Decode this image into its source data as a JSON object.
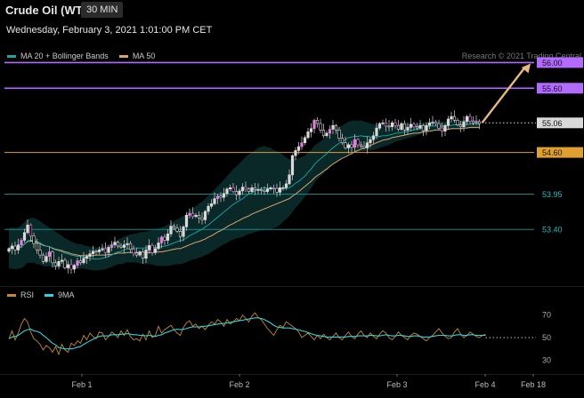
{
  "header": {
    "title": "Crude Oil (WTI)",
    "timeframe": "30 MIN",
    "timestamp": "Wednesday, February 3, 2021 1:01:00 PM CET",
    "credit": "Research © 2021 Trading Central"
  },
  "colors": {
    "resistance": "#b36bff",
    "current": "#d9d9d9",
    "support_main": "#e0a030",
    "support_other": "#0d8a8a",
    "ma20": "#1aa6a6",
    "ma50": "#d9a470",
    "rsi": "#c58a2a",
    "rsi_ma": "#2fd3e0",
    "arrow": "#e8b882",
    "candle": "#d9d9d9",
    "candle_accent": "#e57bdc"
  },
  "chart_data": [
    {
      "type": "candlestick",
      "title": "Crude Oil (WTI)",
      "timeframe": "30 MIN",
      "legend": [
        {
          "name": "MA 20 + Bollinger Bands",
          "color": "#1aa6a6"
        },
        {
          "name": "MA 50",
          "color": "#d9a470"
        }
      ],
      "legend_position": "top-left",
      "grid": false,
      "ylim": [
        52.6,
        56.2
      ],
      "x_ticks": [
        "Feb 1",
        "Feb 2",
        "Feb 3",
        "Feb 4",
        "Feb 18"
      ],
      "levels": [
        {
          "value": 56.0,
          "label": "56.00",
          "kind": "resistance"
        },
        {
          "value": 55.6,
          "label": "55.60",
          "kind": "resistance"
        },
        {
          "value": 55.06,
          "label": "55.06",
          "kind": "current"
        },
        {
          "value": 54.6,
          "label": "54.60",
          "kind": "support_main"
        },
        {
          "value": 53.95,
          "label": "53.95",
          "kind": "support"
        },
        {
          "value": 53.4,
          "label": "53.40",
          "kind": "support"
        }
      ],
      "closes": [
        53.1,
        53.14,
        53.08,
        53.16,
        53.23,
        53.35,
        53.47,
        53.3,
        53.18,
        53.08,
        53.0,
        52.9,
        52.98,
        53.05,
        52.88,
        52.83,
        52.9,
        52.92,
        52.8,
        52.85,
        52.78,
        52.84,
        52.91,
        52.88,
        52.95,
        52.98,
        53.02,
        53.06,
        53.05,
        53.08,
        53.1,
        53.04,
        53.12,
        53.16,
        53.2,
        53.14,
        53.12,
        53.16,
        53.18,
        53.09,
        53.03,
        53.0,
        53.05,
        52.95,
        53.08,
        53.15,
        53.04,
        53.1,
        53.19,
        53.28,
        53.23,
        53.33,
        53.45,
        53.42,
        53.37,
        53.29,
        53.44,
        53.62,
        53.65,
        53.6,
        53.62,
        53.58,
        53.55,
        53.68,
        53.76,
        53.8,
        53.88,
        53.92,
        53.9,
        53.96,
        54.03,
        54.05,
        53.99,
        53.94,
        54.0,
        54.06,
        54.03,
        53.99,
        54.05,
        54.02,
        54.02,
        54.01,
        53.99,
        54.03,
        54.05,
        54.04,
        53.98,
        54.05,
        54.05,
        54.11,
        54.25,
        54.55,
        54.63,
        54.69,
        54.75,
        54.83,
        54.92,
        54.97,
        55.1,
        55.05,
        54.95,
        54.86,
        54.9,
        54.96,
        55.02,
        54.95,
        54.82,
        54.75,
        54.67,
        54.72,
        54.68,
        54.8,
        54.72,
        54.7,
        54.67,
        54.75,
        54.8,
        54.86,
        54.98,
        55.05,
        55.06,
        55.01,
        55.0,
        55.06,
        55.02,
        54.96,
        55.05,
        54.95,
        54.99,
        55.04,
        55.0,
        54.98,
        55.02,
        54.94,
        55.02,
        55.06,
        55.07,
        55.05,
        54.98,
        54.93,
        55.02,
        55.12,
        55.16,
        55.1,
        55.03,
        55.0,
        55.08,
        55.16,
        55.09,
        55.06,
        55.08,
        55.05
      ],
      "ma50": [
        53.1,
        53.11,
        53.1,
        53.11,
        53.13,
        53.17,
        53.21,
        53.22,
        53.21,
        53.2,
        53.18,
        53.15,
        53.14,
        53.13,
        53.11,
        53.09,
        53.08,
        53.07,
        53.05,
        53.04,
        53.02,
        53.01,
        53.0,
        52.99,
        52.99,
        52.99,
        52.99,
        52.99,
        53.0,
        53.0,
        53.0,
        53.0,
        53.01,
        53.01,
        53.02,
        53.03,
        53.03,
        53.03,
        53.04,
        53.04,
        53.04,
        53.04,
        53.04,
        53.03,
        53.04,
        53.04,
        53.04,
        53.04,
        53.05,
        53.05,
        53.06,
        53.07,
        53.08,
        53.09,
        53.1,
        53.1,
        53.12,
        53.14,
        53.16,
        53.18,
        53.2,
        53.21,
        53.23,
        53.25,
        53.28,
        53.3,
        53.33,
        53.36,
        53.38,
        53.41,
        53.44,
        53.47,
        53.49,
        53.52,
        53.54,
        53.57,
        53.59,
        53.61,
        53.64,
        53.66,
        53.68,
        53.7,
        53.72,
        53.74,
        53.76,
        53.78,
        53.8,
        53.82,
        53.84,
        53.86,
        53.88,
        53.92,
        53.95,
        53.99,
        54.03,
        54.07,
        54.11,
        54.15,
        54.2,
        54.24,
        54.27,
        54.31,
        54.34,
        54.38,
        54.42,
        54.45,
        54.48,
        54.51,
        54.53,
        54.56,
        54.58,
        54.61,
        54.63,
        54.65,
        54.67,
        54.69,
        54.71,
        54.73,
        54.75,
        54.77,
        54.79,
        54.8,
        54.81,
        54.83,
        54.84,
        54.85,
        54.86,
        54.87,
        54.88,
        54.89,
        54.9,
        54.9,
        54.91,
        54.92,
        54.93,
        54.93,
        54.94,
        54.95,
        54.95,
        54.95,
        54.96,
        54.96,
        54.97,
        54.97,
        54.97,
        54.97,
        54.98,
        54.98,
        54.99,
        54.99,
        54.99,
        54.99
      ],
      "ma20": [
        53.1,
        53.11,
        53.1,
        53.11,
        53.13,
        53.17,
        53.22,
        53.23,
        53.23,
        53.21,
        53.19,
        53.16,
        53.14,
        53.13,
        53.1,
        53.08,
        53.07,
        53.05,
        53.03,
        53.02,
        53.0,
        52.99,
        52.98,
        52.98,
        52.97,
        52.96,
        52.95,
        52.94,
        52.94,
        52.94,
        52.95,
        52.96,
        52.98,
        53.0,
        53.03,
        53.05,
        53.06,
        53.08,
        53.1,
        53.1,
        53.11,
        53.11,
        53.11,
        53.11,
        53.11,
        53.12,
        53.12,
        53.12,
        53.12,
        53.13,
        53.14,
        53.15,
        53.17,
        53.19,
        53.21,
        53.22,
        53.24,
        53.27,
        53.3,
        53.33,
        53.35,
        53.38,
        53.4,
        53.44,
        53.47,
        53.51,
        53.55,
        53.59,
        53.63,
        53.67,
        53.71,
        53.75,
        53.79,
        53.82,
        53.85,
        53.88,
        53.92,
        53.95,
        53.97,
        54.0,
        54.02,
        54.04,
        54.05,
        54.04,
        54.04,
        54.03,
        54.03,
        54.03,
        54.04,
        54.04,
        54.05,
        54.08,
        54.12,
        54.15,
        54.19,
        54.23,
        54.29,
        54.34,
        54.41,
        54.46,
        54.5,
        54.54,
        54.58,
        54.63,
        54.67,
        54.71,
        54.74,
        54.77,
        54.8,
        54.83,
        54.84,
        54.85,
        54.85,
        54.86,
        54.85,
        54.85,
        54.84,
        54.84,
        54.84,
        54.85,
        54.86,
        54.86,
        54.87,
        54.88,
        54.9,
        54.9,
        54.91,
        54.92,
        54.93,
        54.94,
        54.95,
        54.96,
        54.97,
        54.98,
        54.99,
        55.01,
        55.01,
        55.01,
        55.01,
        55.01,
        55.01,
        55.02,
        55.02,
        55.03,
        55.03,
        55.03,
        55.03,
        55.04,
        55.04,
        55.04,
        55.04,
        55.04
      ],
      "bb_width": [
        0.31,
        0.32,
        0.32,
        0.32,
        0.33,
        0.34,
        0.34,
        0.35,
        0.35,
        0.35,
        0.34,
        0.33,
        0.32,
        0.3,
        0.29,
        0.28,
        0.26,
        0.25,
        0.23,
        0.22,
        0.21,
        0.2,
        0.19,
        0.19,
        0.18,
        0.18,
        0.18,
        0.18,
        0.18,
        0.18,
        0.18,
        0.18,
        0.18,
        0.19,
        0.19,
        0.19,
        0.2,
        0.21,
        0.21,
        0.22,
        0.22,
        0.23,
        0.24,
        0.25,
        0.25,
        0.26,
        0.27,
        0.28,
        0.29,
        0.3,
        0.31,
        0.32,
        0.33,
        0.34,
        0.35,
        0.36,
        0.37,
        0.38,
        0.39,
        0.4,
        0.41,
        0.42,
        0.43,
        0.44,
        0.45,
        0.46,
        0.47,
        0.48,
        0.49,
        0.5,
        0.52,
        0.53,
        0.55,
        0.56,
        0.58,
        0.6,
        0.61,
        0.62,
        0.63,
        0.64,
        0.65,
        0.65,
        0.65,
        0.64,
        0.63,
        0.61,
        0.59,
        0.56,
        0.52,
        0.48,
        0.44,
        0.41,
        0.38,
        0.36,
        0.34,
        0.32,
        0.31,
        0.3,
        0.29,
        0.28,
        0.27,
        0.27,
        0.26,
        0.26,
        0.26,
        0.25,
        0.25,
        0.25,
        0.25,
        0.25,
        0.25,
        0.25,
        0.24,
        0.24,
        0.23,
        0.22,
        0.21,
        0.2,
        0.19,
        0.18,
        0.17,
        0.16,
        0.15,
        0.14,
        0.13,
        0.12,
        0.12,
        0.11,
        0.11,
        0.1,
        0.1,
        0.09,
        0.09,
        0.09,
        0.08,
        0.08,
        0.08,
        0.08,
        0.08,
        0.07,
        0.07,
        0.07,
        0.07,
        0.07,
        0.07,
        0.07,
        0.07,
        0.07,
        0.07,
        0.07,
        0.07,
        0.07,
        0.07,
        0.07
      ],
      "projection": {
        "from": 55.06,
        "to": 56.0
      }
    },
    {
      "type": "line",
      "legend": [
        {
          "name": "RSI",
          "color": "#c58a2a"
        },
        {
          "name": "9MA",
          "color": "#2fd3e0"
        }
      ],
      "legend_position": "top-left",
      "grid": false,
      "ylim": [
        20,
        80
      ],
      "y_ticks": [
        70,
        50,
        30
      ],
      "reference_level": 50,
      "rsi": [
        49.0,
        56.0,
        48.0,
        54.0,
        62.0,
        67.0,
        64.0,
        55.0,
        49.0,
        47.0,
        44.0,
        39.0,
        43.0,
        41.0,
        37.0,
        42.0,
        35.0,
        44.0,
        39.0,
        37.0,
        45.0,
        43.0,
        47.0,
        45.0,
        52.0,
        48.0,
        54.0,
        51.0,
        49.0,
        55.0,
        54.0,
        48.0,
        51.0,
        55.0,
        53.0,
        50.0,
        56.0,
        52.0,
        57.0,
        51.0,
        48.0,
        49.0,
        47.0,
        53.0,
        48.0,
        56.0,
        50.0,
        52.0,
        60.0,
        54.0,
        57.0,
        59.0,
        61.0,
        57.0,
        54.0,
        52.0,
        59.0,
        63.0,
        65.0,
        60.0,
        62.0,
        58.0,
        60.0,
        57.0,
        61.0,
        64.0,
        62.0,
        66.0,
        64.0,
        60.0,
        66.0,
        62.0,
        64.0,
        67.0,
        65.0,
        70.0,
        67.0,
        64.0,
        69.0,
        72.0,
        68.0,
        66.0,
        62.0,
        58.0,
        55.0,
        52.0,
        57.0,
        61.0,
        59.0,
        64.0,
        62.0,
        60.0,
        58.0,
        55.0,
        50.0,
        52.0,
        54.0,
        51.0,
        48.0,
        52.0,
        49.0,
        53.0,
        50.0,
        48.0,
        51.0,
        54.0,
        50.0,
        48.0,
        52.0,
        55.0,
        51.0,
        49.0,
        53.0,
        56.0,
        52.0,
        50.0,
        54.0,
        51.0,
        49.0,
        53.0,
        56.0,
        54.0,
        50.0,
        48.0,
        51.0,
        55.0,
        52.0,
        50.0,
        48.0,
        52.0,
        54.0,
        53.0,
        51.0,
        49.0,
        47.0,
        50.0,
        52.0,
        55.0,
        58.0,
        54.0,
        51.0,
        49.0,
        50.0,
        55.0,
        58.0,
        53.0,
        50.0,
        52.0,
        55.0,
        53.0,
        51.0,
        50.0,
        52.0,
        53.0
      ],
      "ma9": [
        49.0,
        50.5,
        51.0,
        52.0,
        54.0,
        56.0,
        57.0,
        57.5,
        56.0,
        55.5,
        54.5,
        52.0,
        50.0,
        47.5,
        45.0,
        43.5,
        41.0,
        40.5,
        40.0,
        40.0,
        40.0,
        40.5,
        41.5,
        42.0,
        44.0,
        45.5,
        47.0,
        48.5,
        50.0,
        51.0,
        51.5,
        51.5,
        51.5,
        52.5,
        52.5,
        52.5,
        53.0,
        53.0,
        53.5,
        53.0,
        52.5,
        52.5,
        52.0,
        52.0,
        51.5,
        52.0,
        51.5,
        51.0,
        52.0,
        52.5,
        54.0,
        55.0,
        56.0,
        57.0,
        57.5,
        57.0,
        57.5,
        58.0,
        59.0,
        59.5,
        59.5,
        59.5,
        60.0,
        60.0,
        60.5,
        61.0,
        61.5,
        62.0,
        62.5,
        62.5,
        63.0,
        63.5,
        64.0,
        64.5,
        65.0,
        65.5,
        66.0,
        66.5,
        67.0,
        67.5,
        67.5,
        67.0,
        66.0,
        64.5,
        63.0,
        61.0,
        59.5,
        59.0,
        58.5,
        58.5,
        58.5,
        58.0,
        57.5,
        57.0,
        56.0,
        55.5,
        54.5,
        53.5,
        52.5,
        52.0,
        51.5,
        51.0,
        50.5,
        50.5,
        50.5,
        50.5,
        50.5,
        50.5,
        50.5,
        51.0,
        51.0,
        51.0,
        51.5,
        51.5,
        51.5,
        51.5,
        52.0,
        52.0,
        51.5,
        51.5,
        52.0,
        52.5,
        52.0,
        51.5,
        51.5,
        52.0,
        52.0,
        51.5,
        51.0,
        51.0,
        51.5,
        51.5,
        51.0,
        50.5,
        50.5,
        50.5,
        51.0,
        51.5,
        52.0,
        52.0,
        52.0,
        51.5,
        51.5,
        52.0,
        52.5,
        52.5,
        52.0,
        52.0,
        52.5,
        52.5,
        52.0,
        52.0,
        52.0,
        52.0
      ]
    }
  ]
}
